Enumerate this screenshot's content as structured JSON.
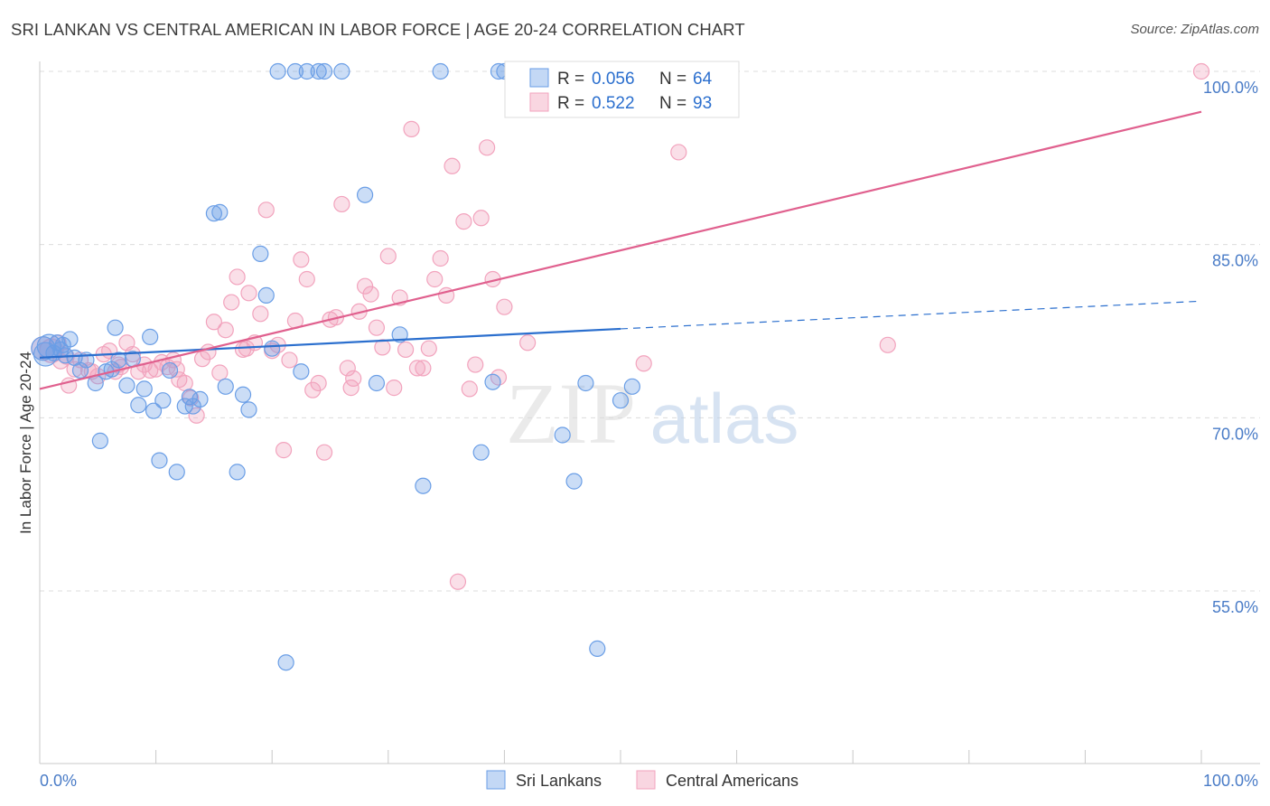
{
  "title": "SRI LANKAN VS CENTRAL AMERICAN IN LABOR FORCE | AGE 20-24 CORRELATION CHART",
  "source": "Source: ZipAtlas.com",
  "watermark": {
    "zip": "ZIP",
    "atlas": "atlas"
  },
  "colors": {
    "blue": "#6a9ee6",
    "blue_line": "#2b6fce",
    "pink": "#f2a3bd",
    "pink_line": "#e0608e",
    "axis_text": "#4a7cc7"
  },
  "legend": {
    "rows": [
      {
        "r_label": "R = ",
        "r_value": "0.056",
        "n_label": "N = ",
        "n_value": "64"
      },
      {
        "r_label": "R = ",
        "r_value": "0.522",
        "n_label": "N = ",
        "n_value": "93"
      }
    ]
  },
  "bottom_legend": [
    "Sri Lankans",
    "Central Americans"
  ],
  "chart_data": {
    "type": "scatter",
    "title": "SRI LANKAN VS CENTRAL AMERICAN IN LABOR FORCE | AGE 20-24 CORRELATION CHART",
    "xlabel": "",
    "ylabel": "In Labor Force | Age 20-24",
    "xlim": [
      0,
      100
    ],
    "ylim": [
      40,
      102
    ],
    "x_tick_labels": [
      "0.0%",
      "100.0%"
    ],
    "y_ticks": [
      55,
      70,
      85,
      100
    ],
    "y_tick_labels": [
      "55.0%",
      "70.0%",
      "85.0%",
      "100.0%"
    ],
    "grid": true,
    "legend_position": "top-center",
    "series": [
      {
        "name": "Sri Lankans",
        "r": 0.056,
        "n": 64,
        "trend": {
          "x0": 0,
          "y0": 75.2,
          "x1": 50,
          "y1": 77.7,
          "dashed_to": {
            "x": 100,
            "y": 80.1
          }
        },
        "points": [
          [
            0.3,
            76.0
          ],
          [
            0.8,
            76.2
          ],
          [
            1.2,
            75.6
          ],
          [
            1.5,
            76.5
          ],
          [
            1.8,
            75.9
          ],
          [
            2.2,
            75.4
          ],
          [
            2.6,
            76.8
          ],
          [
            3.0,
            75.2
          ],
          [
            3.5,
            74.1
          ],
          [
            4.0,
            75.0
          ],
          [
            4.8,
            73.0
          ],
          [
            5.2,
            68.0
          ],
          [
            5.7,
            74.0
          ],
          [
            6.2,
            74.2
          ],
          [
            6.5,
            77.8
          ],
          [
            6.8,
            75.0
          ],
          [
            7.5,
            72.8
          ],
          [
            8.0,
            75.1
          ],
          [
            8.5,
            71.1
          ],
          [
            9.0,
            72.5
          ],
          [
            9.5,
            77.0
          ],
          [
            9.8,
            70.6
          ],
          [
            10.3,
            66.3
          ],
          [
            10.6,
            71.5
          ],
          [
            11.2,
            74.1
          ],
          [
            11.8,
            65.3
          ],
          [
            12.5,
            71.0
          ],
          [
            12.9,
            71.8
          ],
          [
            13.2,
            71.0
          ],
          [
            13.8,
            71.6
          ],
          [
            15.0,
            87.7
          ],
          [
            15.5,
            87.8
          ],
          [
            16.0,
            72.7
          ],
          [
            17.0,
            65.3
          ],
          [
            17.5,
            72.0
          ],
          [
            18.0,
            70.7
          ],
          [
            19.0,
            84.2
          ],
          [
            19.5,
            80.6
          ],
          [
            20.0,
            76.0
          ],
          [
            20.5,
            100.0
          ],
          [
            21.2,
            48.8
          ],
          [
            22.0,
            100.0
          ],
          [
            22.5,
            74.0
          ],
          [
            23.0,
            100.0
          ],
          [
            24.0,
            100.0
          ],
          [
            24.5,
            100.0
          ],
          [
            26.0,
            100.0
          ],
          [
            28.0,
            89.3
          ],
          [
            29.0,
            73.0
          ],
          [
            31.0,
            77.2
          ],
          [
            33.0,
            64.1
          ],
          [
            34.5,
            100.0
          ],
          [
            38.0,
            67.0
          ],
          [
            39.0,
            73.1
          ],
          [
            39.5,
            100.0
          ],
          [
            40.0,
            100.0
          ],
          [
            45.0,
            68.5
          ],
          [
            46.0,
            64.5
          ],
          [
            47.0,
            73.0
          ],
          [
            48.0,
            50.0
          ],
          [
            50.0,
            71.5
          ],
          [
            51.0,
            72.7
          ],
          [
            0.5,
            75.5
          ],
          [
            2.0,
            76.3
          ]
        ]
      },
      {
        "name": "Central Americans",
        "r": 0.522,
        "n": 93,
        "trend": {
          "x0": 0,
          "y0": 72.5,
          "x1": 100,
          "y1": 96.5
        },
        "points": [
          [
            0.3,
            76.0
          ],
          [
            1.0,
            75.8
          ],
          [
            1.6,
            76.5
          ],
          [
            2.3,
            75.3
          ],
          [
            2.5,
            72.8
          ],
          [
            3.0,
            74.2
          ],
          [
            3.5,
            75.0
          ],
          [
            4.2,
            74.1
          ],
          [
            5.0,
            73.6
          ],
          [
            5.5,
            75.5
          ],
          [
            6.0,
            75.8
          ],
          [
            6.5,
            74.0
          ],
          [
            7.0,
            74.4
          ],
          [
            7.5,
            76.5
          ],
          [
            8.0,
            75.5
          ],
          [
            8.5,
            74.0
          ],
          [
            9.0,
            74.6
          ],
          [
            9.5,
            74.1
          ],
          [
            10.0,
            74.2
          ],
          [
            10.5,
            74.8
          ],
          [
            11.0,
            74.4
          ],
          [
            11.5,
            75.0
          ],
          [
            12.0,
            73.3
          ],
          [
            12.5,
            73.0
          ],
          [
            13.0,
            71.7
          ],
          [
            13.5,
            70.2
          ],
          [
            14.0,
            75.1
          ],
          [
            14.5,
            75.7
          ],
          [
            15.0,
            78.3
          ],
          [
            15.5,
            73.9
          ],
          [
            16.0,
            77.6
          ],
          [
            16.5,
            80.0
          ],
          [
            17.0,
            82.2
          ],
          [
            17.5,
            75.9
          ],
          [
            18.0,
            80.8
          ],
          [
            18.5,
            76.5
          ],
          [
            19.0,
            79.0
          ],
          [
            19.5,
            88.0
          ],
          [
            20.0,
            75.8
          ],
          [
            20.5,
            76.3
          ],
          [
            21.0,
            67.2
          ],
          [
            21.5,
            75.0
          ],
          [
            22.0,
            78.4
          ],
          [
            22.5,
            83.7
          ],
          [
            23.0,
            82.0
          ],
          [
            23.5,
            72.4
          ],
          [
            24.0,
            73.0
          ],
          [
            24.5,
            67.0
          ],
          [
            25.0,
            78.5
          ],
          [
            25.5,
            78.7
          ],
          [
            26.0,
            88.5
          ],
          [
            26.5,
            74.3
          ],
          [
            27.0,
            73.4
          ],
          [
            27.5,
            79.2
          ],
          [
            28.0,
            81.4
          ],
          [
            28.5,
            80.7
          ],
          [
            29.0,
            77.8
          ],
          [
            29.5,
            76.1
          ],
          [
            30.0,
            84.0
          ],
          [
            30.5,
            72.6
          ],
          [
            31.0,
            80.4
          ],
          [
            31.5,
            75.9
          ],
          [
            32.0,
            95.0
          ],
          [
            32.5,
            74.3
          ],
          [
            33.0,
            74.3
          ],
          [
            33.5,
            76.0
          ],
          [
            34.0,
            82.0
          ],
          [
            34.5,
            83.8
          ],
          [
            35.0,
            80.6
          ],
          [
            35.5,
            91.8
          ],
          [
            36.0,
            55.8
          ],
          [
            36.5,
            87.0
          ],
          [
            37.0,
            72.5
          ],
          [
            37.5,
            74.6
          ],
          [
            38.0,
            87.3
          ],
          [
            38.5,
            93.4
          ],
          [
            39.0,
            82.0
          ],
          [
            39.5,
            73.5
          ],
          [
            40.0,
            79.6
          ],
          [
            41.0,
            97.5
          ],
          [
            42.0,
            76.5
          ],
          [
            43.0,
            96.8
          ],
          [
            45.0,
            100.0
          ],
          [
            52.0,
            74.7
          ],
          [
            55.0,
            93.0
          ],
          [
            73.0,
            76.3
          ],
          [
            100.0,
            100.0
          ],
          [
            1.8,
            74.9
          ],
          [
            4.5,
            74.0
          ],
          [
            6.8,
            74.6
          ],
          [
            11.8,
            74.2
          ],
          [
            17.8,
            76.0
          ],
          [
            26.8,
            72.6
          ]
        ]
      }
    ]
  }
}
